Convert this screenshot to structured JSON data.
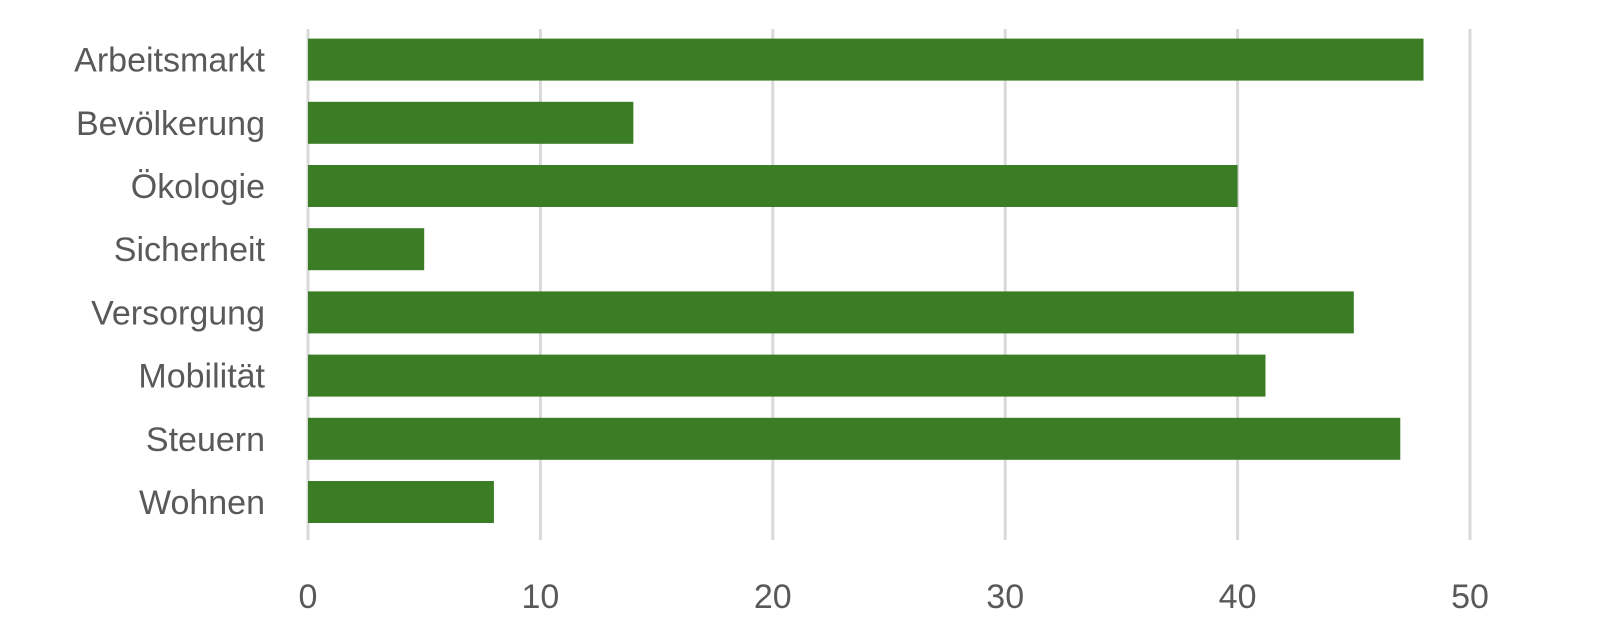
{
  "chart_data": {
    "type": "bar",
    "orientation": "horizontal",
    "categories": [
      "Arbeitsmarkt",
      "Bevölkerung",
      "Ökologie",
      "Sicherheit",
      "Versorgung",
      "Mobilität",
      "Steuern",
      "Wohnen"
    ],
    "values": [
      48,
      14,
      40,
      5,
      45,
      41.2,
      47,
      8
    ],
    "xlim": [
      0,
      50
    ],
    "xticks": [
      0,
      10,
      20,
      30,
      40,
      50
    ],
    "xtick_labels": [
      "0",
      "10",
      "20",
      "30",
      "40",
      "50"
    ],
    "grid": true,
    "legend": false,
    "colors": {
      "bar": "#3a7d24",
      "grid": "#d9d9d9",
      "text": "#595959"
    }
  }
}
